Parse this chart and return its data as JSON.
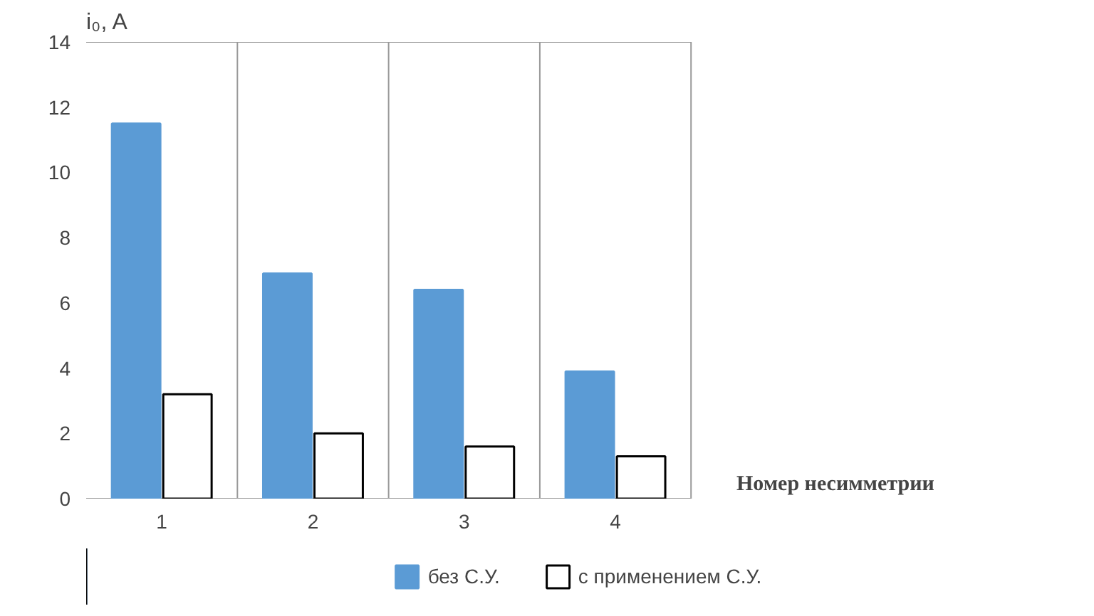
{
  "chart_data": {
    "type": "bar",
    "ylabel": "i₀, A",
    "xlabel": "Номер несимметрии",
    "categories": [
      "1",
      "2",
      "3",
      "4"
    ],
    "series": [
      {
        "name": "без С.У.",
        "color": "#5b9bd5",
        "values": [
          11.5,
          6.9,
          6.4,
          3.9
        ]
      },
      {
        "name": "с применением С.У.",
        "color": "#ffffff",
        "values": [
          3.2,
          2.0,
          1.6,
          1.3
        ]
      }
    ],
    "ylim": [
      0,
      14
    ],
    "yticks": [
      0,
      2,
      4,
      6,
      8,
      10,
      12,
      14
    ],
    "grid": "x",
    "legend": "bottom"
  }
}
